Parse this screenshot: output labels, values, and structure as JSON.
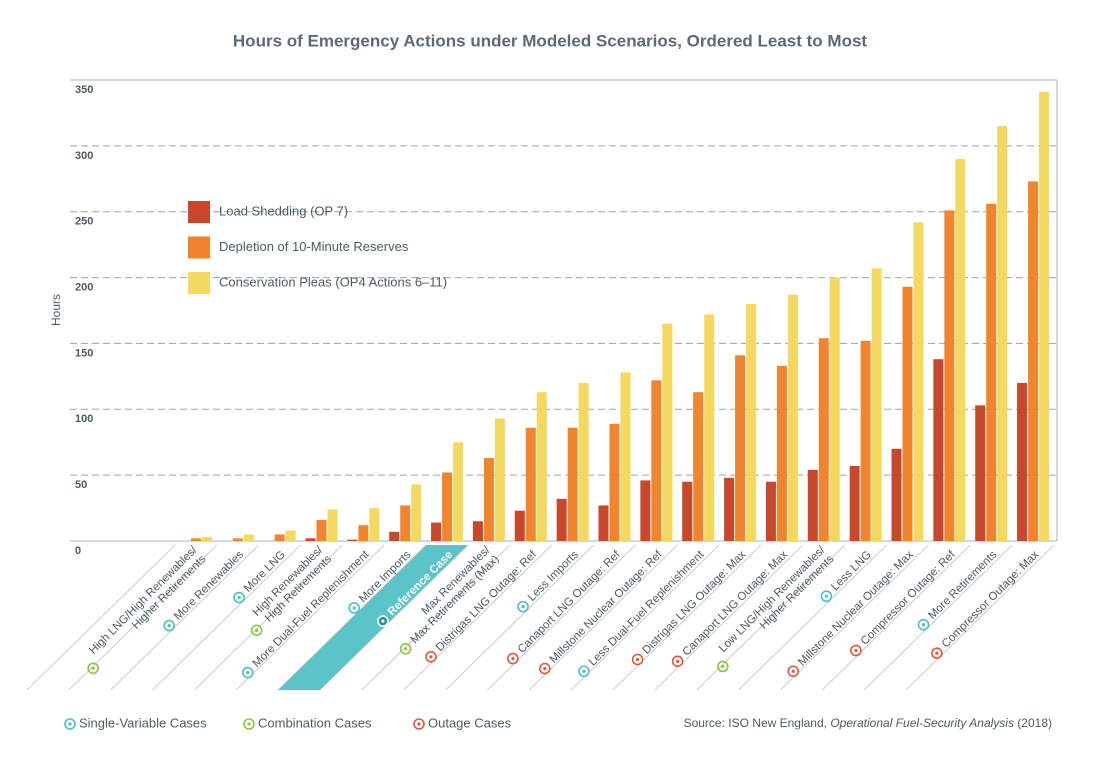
{
  "chart_data": {
    "type": "bar",
    "title": "Hours of Emergency Actions under Modeled Scenarios, Ordered Least to Most",
    "y_label": "Hours",
    "categories": [
      "High LNG/High Renewables/\nHigher Retirements",
      "More Renewables",
      "More LNG",
      "High Renewables/\nHigh Retirements",
      "More Dual-Fuel Replenishment",
      "More Imports",
      "Reference Case",
      "Max Renewables/\nMax Retirements (Max)",
      "Distrigas LNG Outage: Ref",
      "Less Imports",
      "Canaport LNG Outage: Ref",
      "Millstone Nuclear Outage: Ref",
      "Less Dual-Fuel Replenishment",
      "Distrigas LNG Outage: Max",
      "Canaport LNG Outage: Max",
      "Low LNG/High Renewables/\nHigher Retirements",
      "Less LNG",
      "Millstone Nuclear Outage: Max",
      "Compressor Outage: Ref",
      "More Retirements",
      "Compressor Outage: Max"
    ],
    "category_groups": [
      1,
      0,
      0,
      1,
      0,
      0,
      0,
      1,
      2,
      0,
      2,
      2,
      0,
      2,
      2,
      1,
      0,
      2,
      2,
      0,
      2
    ],
    "highlight_category": 6,
    "highlight_color": "#5bc4c9",
    "case_groups": [
      {
        "name": "Single-Variable Cases",
        "color": "#4fbfc6"
      },
      {
        "name": "Combination Cases",
        "color": "#8dc63f"
      },
      {
        "name": "Outage Cases",
        "color": "#e05a3a"
      }
    ],
    "series": [
      {
        "name": "Load Shedding (OP 7)",
        "color": "#c9472a",
        "values": [
          0,
          0,
          0,
          2,
          1,
          7,
          14,
          15,
          23,
          32,
          27,
          46,
          45,
          48,
          45,
          54,
          57,
          70,
          138,
          103,
          120
        ]
      },
      {
        "name": "Depletion of 10-Minute Reserves",
        "color": "#f0852d",
        "values": [
          2,
          2,
          5,
          16,
          12,
          27,
          52,
          63,
          86,
          86,
          89,
          122,
          113,
          141,
          133,
          154,
          152,
          193,
          251,
          256,
          273
        ]
      },
      {
        "name": "Conservation Pleas (OP4 Actions 6–11)",
        "color": "#f5d860",
        "values": [
          3,
          5,
          8,
          24,
          25,
          43,
          75,
          93,
          113,
          120,
          128,
          165,
          172,
          180,
          187,
          200,
          207,
          242,
          290,
          315,
          341
        ]
      }
    ],
    "ylim": [
      0,
      350
    ],
    "yticks": [
      0,
      50,
      100,
      150,
      200,
      250,
      300,
      350
    ],
    "grid": true,
    "source": [
      "Source: ISO New England, ",
      "Operational Fuel-Security Analysis",
      " (2018)"
    ]
  }
}
